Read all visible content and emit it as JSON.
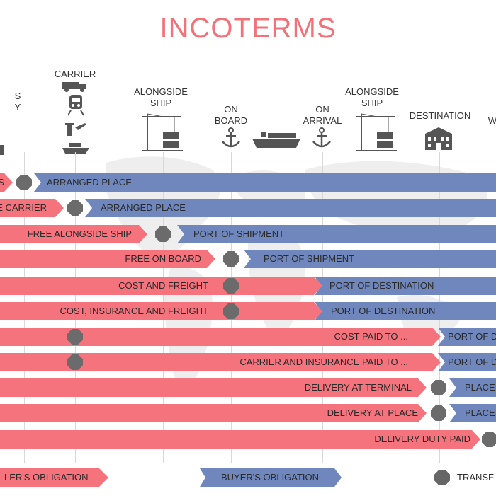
{
  "title": "INCOTERMS",
  "colors": {
    "seller": "#f4737c",
    "buyer": "#6f87bd",
    "marker": "#6b6b6b",
    "title": "#f2727a"
  },
  "columns": [
    {
      "label": "S\nY",
      "icon": "warehouse-icon"
    },
    {
      "label": "CARRIER",
      "icon": "truck-train-plane-ship-icon"
    },
    {
      "label": "ALONGSIDE\nSHIP",
      "icon": "crane-icon"
    },
    {
      "label": "ON\nBOARD",
      "icon": "anchor-icon"
    },
    {
      "label": "",
      "icon": "cargo-ship-icon"
    },
    {
      "label": "ON\nARRIVAL",
      "icon": "anchor-icon"
    },
    {
      "label": "ALONGSIDE\nSHIP",
      "icon": "crane-icon"
    },
    {
      "label": "DESTINATION",
      "icon": "building-icon"
    },
    {
      "label": "W",
      "icon": ""
    }
  ],
  "rows": [
    {
      "seller_label": "S",
      "buyer_label": "ARRANGED PLACE"
    },
    {
      "seller_label": "E CARRIER",
      "buyer_label": "ARRANGED PLACE"
    },
    {
      "seller_label": "FREE ALONGSIDE SHIP",
      "buyer_label": "PORT OF SHIPMENT"
    },
    {
      "seller_label": "FREE ON BOARD",
      "buyer_label": "PORT OF SHIPMENT"
    },
    {
      "seller_label": "COST AND FREIGHT",
      "buyer_label": "PORT OF DESTINATION"
    },
    {
      "seller_label": "COST, INSURANCE AND FREIGHT",
      "buyer_label": "PORT OF DESTINATION"
    },
    {
      "seller_label": "COST PAID TO ...",
      "buyer_label": "PORT OF D"
    },
    {
      "seller_label": "CARRIER AND INSURANCE PAID TO ...",
      "buyer_label": "PORT OF D"
    },
    {
      "seller_label": "DELIVERY AT TERMINAL",
      "buyer_label": "PLACE"
    },
    {
      "seller_label": "DELIVERY AT PLACE",
      "buyer_label": "PLACE"
    },
    {
      "seller_label": "DELIVERY DUTY PAID",
      "buyer_label": ""
    }
  ],
  "legend": {
    "seller": "LER'S OBLIGATION",
    "buyer": "BUYER'S OBLIGATION",
    "transfer": "TRANSF"
  }
}
